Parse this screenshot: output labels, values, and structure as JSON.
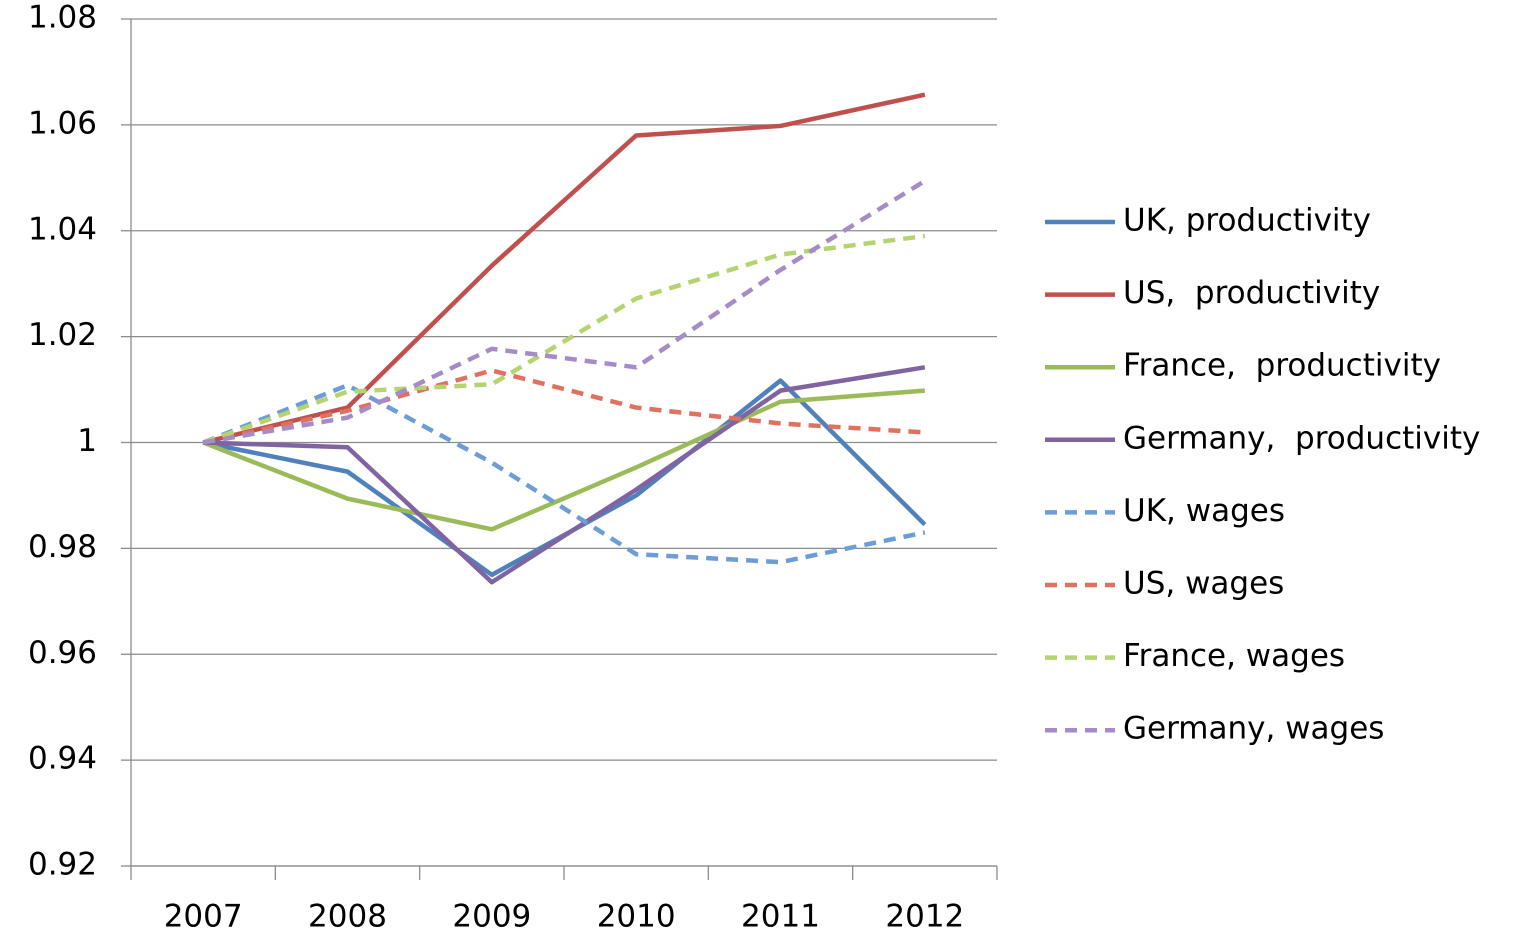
{
  "chart_data": {
    "type": "line",
    "categories": [
      "2007",
      "2008",
      "2009",
      "2010",
      "2011",
      "2012"
    ],
    "series": [
      {
        "name": "UK, productivity",
        "color": "#4f81bd",
        "line_style": "solid",
        "values": [
          1,
          0.9945,
          0.975,
          0.99,
          1.0117,
          0.9845
        ]
      },
      {
        "name": "US,  productivity",
        "color": "#c0504d",
        "line_style": "solid",
        "values": [
          1,
          1.0066,
          1.0334,
          1.058,
          1.0598,
          1.0657
        ]
      },
      {
        "name": "France,  productivity",
        "color": "#9bbb59",
        "line_style": "solid",
        "values": [
          1,
          0.9894,
          0.9836,
          0.9953,
          1.0077,
          1.0098
        ]
      },
      {
        "name": "Germany,  productivity",
        "color": "#8064a2",
        "line_style": "solid",
        "values": [
          1,
          0.9991,
          0.9736,
          0.9911,
          1.0098,
          1.0142
        ]
      },
      {
        "name": "UK, wages",
        "color": "#6d9dd6",
        "line_style": "dashed",
        "values": [
          1,
          1.0108,
          0.9962,
          0.9789,
          0.9774,
          0.983
        ]
      },
      {
        "name": "US, wages",
        "color": "#e0705f",
        "line_style": "dashed",
        "values": [
          1,
          1.006,
          1.0136,
          1.0066,
          1.0036,
          1.0019
        ]
      },
      {
        "name": "France, wages",
        "color": "#b6d46e",
        "line_style": "dashed",
        "values": [
          1,
          1.0096,
          1.011,
          1.0272,
          1.0355,
          1.039
        ]
      },
      {
        "name": "Germany, wages",
        "color": "#a58bc8",
        "line_style": "dashed",
        "values": [
          1,
          1.0047,
          1.0177,
          1.0142,
          1.0326,
          1.0494
        ]
      }
    ],
    "ylim": [
      0.92,
      1.08
    ],
    "yticks": [
      0.92,
      0.94,
      0.96,
      0.98,
      1,
      1.02,
      1.04,
      1.06,
      1.08
    ],
    "grid": true,
    "legend": "right"
  }
}
